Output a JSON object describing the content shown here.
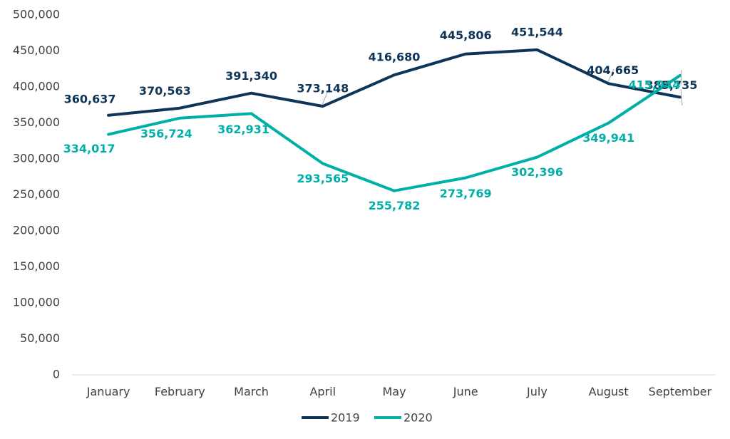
{
  "chart_data": {
    "type": "line",
    "categories": [
      "January",
      "February",
      "March",
      "April",
      "May",
      "June",
      "July",
      "August",
      "September"
    ],
    "series": [
      {
        "name": "2019",
        "color": "#0e3558",
        "values": [
          360637,
          370563,
          391340,
          373148,
          416680,
          445806,
          451544,
          404665,
          385735
        ],
        "labels": [
          "360,637",
          "370,563",
          "391,340",
          "373,148",
          "416,680",
          "445,806",
          "451,544",
          "404,665",
          "385,735"
        ]
      },
      {
        "name": "2020",
        "color": "#00b0a8",
        "values": [
          334017,
          356724,
          362931,
          293565,
          255782,
          273769,
          302396,
          349941,
          415944
        ],
        "labels": [
          "334,017",
          "356,724",
          "362,931",
          "293,565",
          "255,782",
          "273,769",
          "302,396",
          "349,941",
          "415,944"
        ]
      }
    ],
    "ylim": [
      0,
      500000
    ],
    "yticks": [
      0,
      50000,
      100000,
      150000,
      200000,
      250000,
      300000,
      350000,
      400000,
      450000,
      500000
    ],
    "ytick_labels": [
      "0",
      "50,000",
      "100,000",
      "150,000",
      "200,000",
      "250,000",
      "300,000",
      "350,000",
      "400,000",
      "450,000",
      "500,000"
    ],
    "grid": false,
    "legend": "bottom-center"
  }
}
